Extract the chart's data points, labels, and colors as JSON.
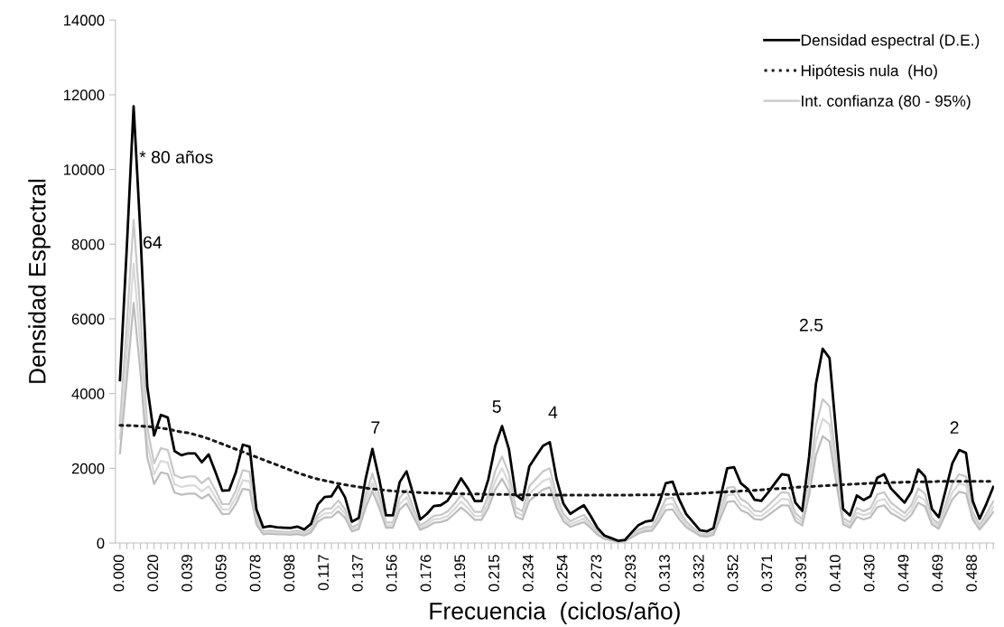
{
  "chart_data": {
    "type": "line",
    "xlabel": "Frecuencia  (ciclos/año)",
    "ylabel": "Densidad Espectral",
    "categories": [
      "0.000",
      null,
      null,
      null,
      null,
      "0.020",
      null,
      null,
      null,
      null,
      "0.039",
      null,
      null,
      null,
      null,
      "0.059",
      null,
      null,
      null,
      null,
      "0.078",
      null,
      null,
      null,
      null,
      "0.098",
      null,
      null,
      null,
      null,
      "0.117",
      null,
      null,
      null,
      null,
      "0.137",
      null,
      null,
      null,
      null,
      "0.156",
      null,
      null,
      null,
      null,
      "0.176",
      null,
      null,
      null,
      null,
      "0.195",
      null,
      null,
      null,
      null,
      "0.215",
      null,
      null,
      null,
      null,
      "0.234",
      null,
      null,
      null,
      null,
      "0.254",
      null,
      null,
      null,
      null,
      "0.273",
      null,
      null,
      null,
      null,
      "0.293",
      null,
      null,
      null,
      null,
      "0.313",
      null,
      null,
      null,
      null,
      "0.332",
      null,
      null,
      null,
      null,
      "0.352",
      null,
      null,
      null,
      null,
      "0.371",
      null,
      null,
      null,
      null,
      "0.391",
      null,
      null,
      null,
      null,
      "0.410",
      null,
      null,
      null,
      null,
      "0.430",
      null,
      null,
      null,
      null,
      "0.449",
      null,
      null,
      null,
      null,
      "0.469",
      null,
      null,
      null,
      null,
      "0.488",
      null,
      null,
      null
    ],
    "ylim": [
      0,
      14000
    ],
    "yticks": [
      0,
      2000,
      4000,
      6000,
      8000,
      10000,
      12000,
      14000
    ],
    "grid": false,
    "legend": "top right",
    "marker": "none",
    "series": [
      {
        "name": "Int. confianza (80 - 95%)",
        "color": "#c8c8c8",
        "line_style": "solid",
        "values": [
          3230,
          5850,
          8650,
          6140,
          3100,
          2130,
          2540,
          2490,
          1820,
          1740,
          1780,
          1780,
          1600,
          1750,
          1410,
          1040,
          1040,
          1410,
          1950,
          1910,
          670,
          310,
          330,
          310,
          300,
          300,
          330,
          270,
          380,
          760,
          910,
          930,
          1140,
          900,
          420,
          500,
          1270,
          1860,
          1270,
          550,
          550,
          1210,
          1420,
          950,
          470,
          580,
          730,
          750,
          840,
          1040,
          1280,
          1080,
          830,
          830,
          1270,
          1920,
          2320,
          1860,
          950,
          850,
          1520,
          1720,
          1920,
          2000,
          1260,
          780,
          580,
          670,
          750,
          530,
          300,
          150,
          100,
          40,
          60,
          210,
          360,
          420,
          440,
          780,
          1180,
          1210,
          850,
          570,
          410,
          250,
          230,
          300,
          890,
          1480,
          1500,
          1180,
          1070,
          860,
          840,
          1000,
          1180,
          1360,
          1340,
          800,
          640,
          1700,
          3150,
          3850,
          3660,
          2150,
          670,
          550,
          940,
          850,
          930,
          1300,
          1360,
          1080,
          940,
          800,
          1010,
          1460,
          1320,
          670,
          510,
          1040,
          1580,
          1840,
          1780,
          830,
          480,
          780,
          1110
        ]
      },
      {
        "color": "#d9d9d9",
        "line_style": "solid",
        "values": [
          2790,
          5060,
          7480,
          5310,
          2680,
          1840,
          2200,
          2150,
          1570,
          1500,
          1540,
          1540,
          1380,
          1520,
          1220,
          900,
          900,
          1220,
          1680,
          1650,
          580,
          270,
          290,
          270,
          260,
          260,
          280,
          230,
          330,
          660,
          790,
          800,
          990,
          780,
          360,
          430,
          1090,
          1610,
          1090,
          470,
          470,
          1040,
          1230,
          830,
          400,
          500,
          630,
          650,
          720,
          900,
          1110,
          930,
          720,
          720,
          1090,
          1660,
          2000,
          1610,
          830,
          740,
          1310,
          1490,
          1660,
          1730,
          1090,
          670,
          500,
          580,
          650,
          460,
          260,
          130,
          80,
          40,
          50,
          180,
          310,
          360,
          380,
          670,
          1020,
          1050,
          740,
          490,
          360,
          220,
          200,
          260,
          770,
          1280,
          1300,
          1020,
          930,
          740,
          720,
          860,
          1020,
          1180,
          1160,
          690,
          550,
          1470,
          2720,
          3330,
          3170,
          1860,
          580,
          470,
          810,
          740,
          800,
          1120,
          1180,
          930,
          810,
          690,
          880,
          1260,
          1140,
          580,
          440,
          900,
          1360,
          1590,
          1540,
          720,
          420,
          670,
          960
        ]
      },
      {
        "color": "#bdbdbd",
        "line_style": "solid",
        "values": [
          2400,
          4350,
          6430,
          4570,
          2300,
          1580,
          1890,
          1850,
          1350,
          1290,
          1320,
          1320,
          1190,
          1300,
          1050,
          770,
          780,
          1050,
          1450,
          1420,
          500,
          230,
          250,
          230,
          230,
          220,
          240,
          200,
          280,
          570,
          680,
          690,
          850,
          670,
          310,
          370,
          940,
          1390,
          940,
          410,
          410,
          900,
          1060,
          710,
          350,
          430,
          540,
          560,
          620,
          780,
          950,
          800,
          620,
          620,
          940,
          1430,
          1720,
          1390,
          710,
          630,
          1130,
          1280,
          1430,
          1490,
          940,
          580,
          430,
          500,
          560,
          400,
          220,
          110,
          70,
          30,
          40,
          150,
          260,
          310,
          330,
          580,
          880,
          900,
          630,
          420,
          310,
          190,
          170,
          220,
          660,
          1100,
          1120,
          880,
          800,
          640,
          620,
          740,
          880,
          1010,
          1000,
          590,
          470,
          1270,
          2340,
          2860,
          2720,
          1600,
          500,
          410,
          700,
          630,
          690,
          960,
          1010,
          800,
          700,
          590,
          750,
          1080,
          980,
          500,
          380,
          770,
          1170,
          1370,
          1330,
          620,
          360,
          580,
          830
        ]
      },
      {
        "name": "Hipótesis nula  (Ho)",
        "color": "#1a1a1a",
        "line_style": "dotted",
        "values": [
          3150,
          3145,
          3140,
          3130,
          3120,
          3100,
          3080,
          3050,
          3010,
          2970,
          2950,
          2900,
          2850,
          2790,
          2720,
          2650,
          2580,
          2510,
          2440,
          2370,
          2300,
          2230,
          2160,
          2090,
          2020,
          1950,
          1880,
          1820,
          1760,
          1710,
          1670,
          1630,
          1590,
          1560,
          1530,
          1500,
          1470,
          1450,
          1430,
          1410,
          1390,
          1380,
          1370,
          1360,
          1350,
          1340,
          1340,
          1330,
          1330,
          1320,
          1320,
          1310,
          1310,
          1310,
          1300,
          1300,
          1300,
          1300,
          1290,
          1290,
          1290,
          1290,
          1290,
          1290,
          1280,
          1280,
          1280,
          1280,
          1280,
          1280,
          1280,
          1280,
          1280,
          1280,
          1280,
          1280,
          1290,
          1290,
          1290,
          1290,
          1300,
          1300,
          1310,
          1310,
          1320,
          1330,
          1340,
          1350,
          1360,
          1370,
          1380,
          1390,
          1400,
          1410,
          1420,
          1440,
          1450,
          1460,
          1470,
          1490,
          1500,
          1510,
          1520,
          1530,
          1540,
          1550,
          1560,
          1570,
          1580,
          1590,
          1600,
          1610,
          1610,
          1620,
          1620,
          1630,
          1630,
          1640,
          1640,
          1640,
          1650,
          1650,
          1650,
          1650,
          1650,
          1650,
          1650,
          1650,
          1650
        ]
      },
      {
        "name": "Densidad espectral (D.E.)",
        "color": "#000000",
        "line_style": "solid",
        "values": [
          4360,
          7900,
          11690,
          8300,
          4190,
          2880,
          3430,
          3360,
          2460,
          2350,
          2400,
          2400,
          2160,
          2370,
          1900,
          1400,
          1410,
          1900,
          2630,
          2580,
          900,
          420,
          450,
          420,
          410,
          400,
          440,
          360,
          510,
          1030,
          1230,
          1250,
          1540,
          1220,
          570,
          670,
          1710,
          2520,
          1710,
          740,
          740,
          1630,
          1920,
          1290,
          630,
          780,
          990,
          1010,
          1130,
          1410,
          1730,
          1460,
          1120,
          1120,
          1710,
          2600,
          3130,
          2520,
          1290,
          1150,
          2050,
          2330,
          2600,
          2700,
          1700,
          1050,
          780,
          900,
          1010,
          720,
          400,
          200,
          130,
          60,
          80,
          280,
          480,
          570,
          600,
          1050,
          1600,
          1640,
          1150,
          770,
          560,
          340,
          310,
          400,
          1200,
          2000,
          2030,
          1600,
          1450,
          1160,
          1130,
          1350,
          1600,
          1840,
          1810,
          1080,
          860,
          2300,
          4250,
          5200,
          4950,
          2900,
          910,
          740,
          1270,
          1150,
          1250,
          1750,
          1840,
          1460,
          1270,
          1080,
          1370,
          1970,
          1780,
          910,
          690,
          1400,
          2130,
          2490,
          2410,
          1120,
          650,
          1050,
          1500
        ]
      }
    ],
    "annotations": [
      "* 80 años",
      "64",
      "7",
      "5",
      "4",
      "2.5",
      "2"
    ]
  }
}
